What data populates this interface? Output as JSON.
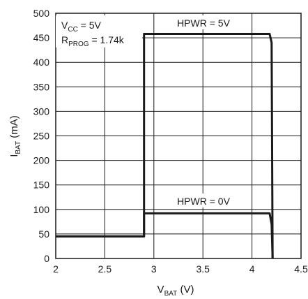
{
  "chart_data": {
    "type": "line",
    "xlabel": {
      "main": "V",
      "sub": "BAT",
      "tail": " (V)"
    },
    "ylabel": {
      "main": "I",
      "sub": "BAT",
      "tail": " (mA)"
    },
    "xlim": [
      2,
      4.5
    ],
    "ylim": [
      0,
      500
    ],
    "xticks": [
      "2",
      "2.5",
      "3",
      "3.5",
      "4",
      "4.5"
    ],
    "yticks": [
      "0",
      "50",
      "100",
      "150",
      "200",
      "250",
      "300",
      "350",
      "400",
      "450",
      "500"
    ],
    "grid": true,
    "conditions": {
      "vcc": {
        "main": "V",
        "sub": "CC",
        "tail": " = 5V"
      },
      "rprog": {
        "main": "R",
        "sub": "PROG",
        "tail": " = 1.74k"
      }
    },
    "series": [
      {
        "name": "HPWR = 5V",
        "x": [
          2.0,
          2.9,
          2.9,
          4.18,
          4.2,
          4.21
        ],
        "y": [
          45,
          45,
          458,
          458,
          440,
          0
        ]
      },
      {
        "name": "HPWR = 0V",
        "x": [
          2.0,
          2.9,
          2.9,
          4.18,
          4.2,
          4.21
        ],
        "y": [
          45,
          45,
          92,
          92,
          70,
          0
        ]
      }
    ]
  }
}
